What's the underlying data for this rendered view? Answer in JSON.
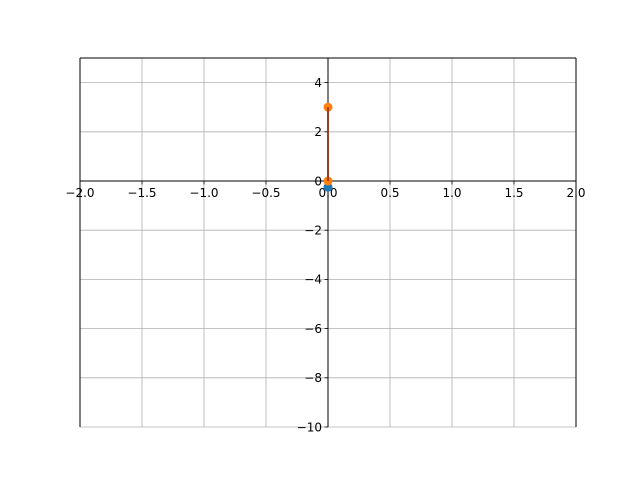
{
  "chart_data": {
    "type": "line",
    "title": "",
    "xlabel": "",
    "ylabel": "",
    "xlim": [
      -2.0,
      2.0
    ],
    "ylim": [
      -10,
      5
    ],
    "grid": true,
    "spines": "centered",
    "xticks": [
      -2.0,
      -1.5,
      -1.0,
      -0.5,
      0.0,
      0.5,
      1.0,
      1.5,
      2.0
    ],
    "yticks": [
      -10,
      -8,
      -6,
      -4,
      -2,
      0,
      2,
      4
    ],
    "xtick_labels": [
      "−2.0",
      "−1.5",
      "−1.0",
      "−0.5",
      "0.0",
      "0.5",
      "1.0",
      "1.5",
      "2.0"
    ],
    "ytick_labels": [
      "−10",
      "−8",
      "−6",
      "−4",
      "−2",
      "0",
      "2",
      "4"
    ],
    "series": [
      {
        "color": "#1f77b4",
        "line": {
          "x": [
            0.0,
            0.0
          ],
          "y": [
            -0.25,
            3.0
          ]
        },
        "points": {
          "x": [
            0.0
          ],
          "y": [
            -0.25
          ]
        }
      },
      {
        "color": "#ff7f0e",
        "line": {
          "x": [
            0.0,
            0.0
          ],
          "y": [
            0.0,
            3.0
          ]
        },
        "points": {
          "x": [
            0.0,
            0.0
          ],
          "y": [
            3.0,
            0.0
          ]
        }
      },
      {
        "color": "#8c2d19",
        "line": {
          "x": [
            0.0,
            0.0
          ],
          "y": [
            0.0,
            3.0
          ]
        },
        "points": {
          "x": [],
          "y": []
        }
      }
    ]
  }
}
